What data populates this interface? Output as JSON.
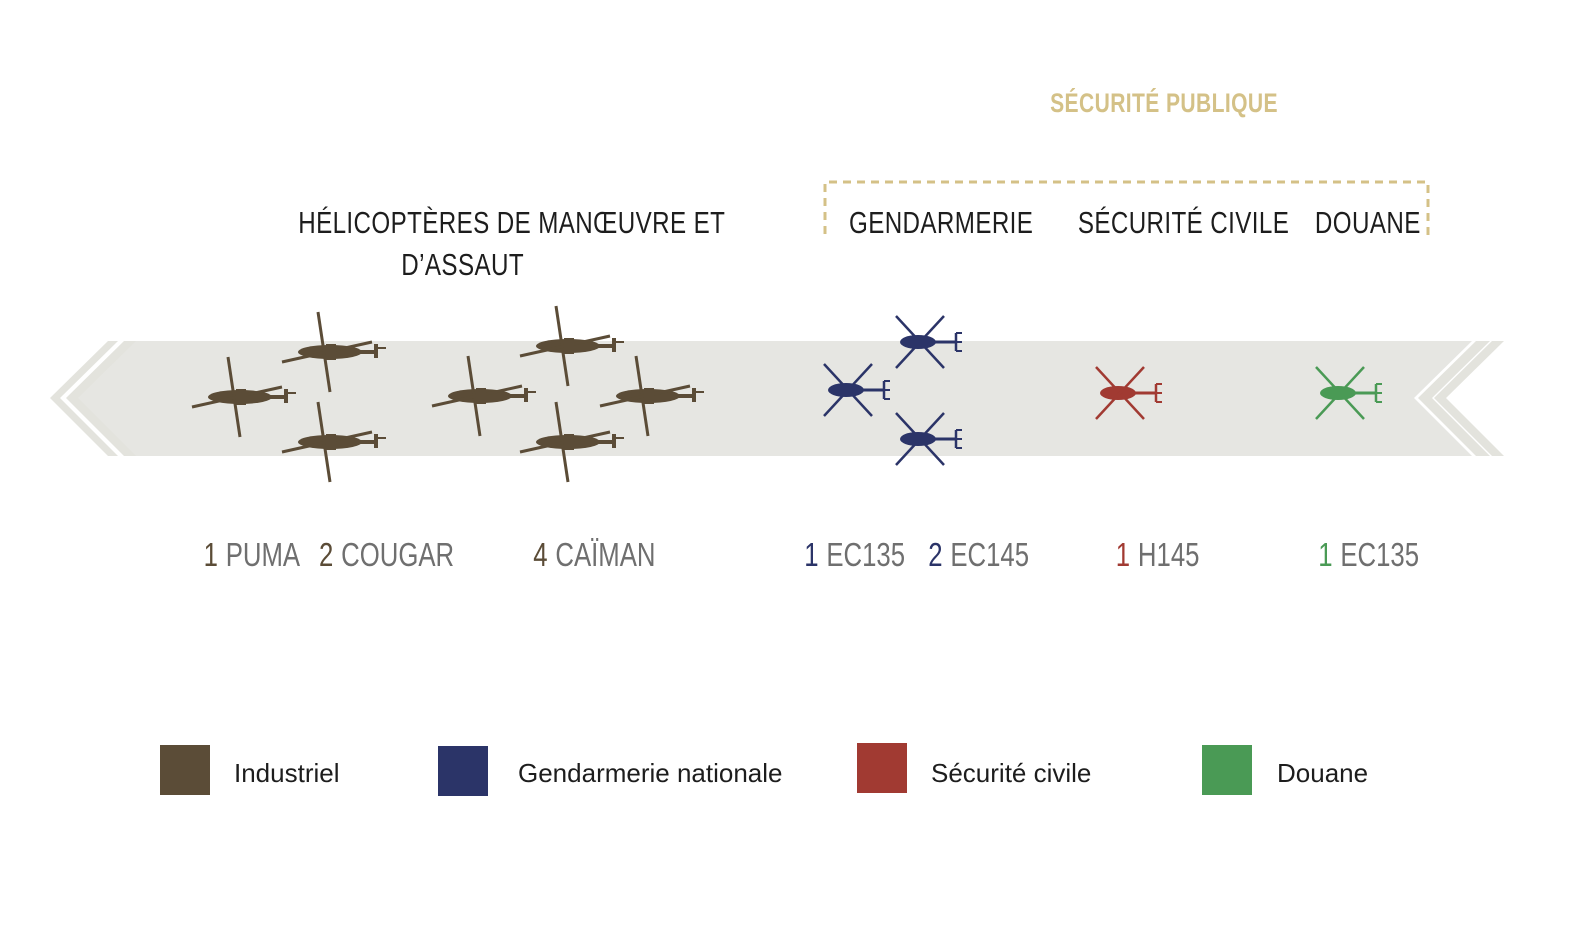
{
  "colors": {
    "industriel": "#5b4c37",
    "gendarmerie": "#2b3468",
    "securite_civile": "#a13a32",
    "douane": "#4a9a55",
    "band": "#e6e6e2",
    "band_chevron": "#e3e3dd",
    "bracket": "#d4c187",
    "heading_text": "#1d1d1d",
    "count_text": "#6f6f6f",
    "publique_text": "#d4c187"
  },
  "titles": {
    "securite_publique": "SÉCURITÉ PUBLIQUE",
    "manoeuvre_line1": "HÉLICOPTÈRES DE MANŒUVRE ET",
    "manoeuvre_line2": "D’ASSAUT",
    "gendarmerie": "GENDARMERIE",
    "securite_civile": "SÉCURITÉ CIVILE",
    "douane": "DOUANE"
  },
  "fleet": [
    {
      "count": "1",
      "model": "PUMA",
      "group": "industriel"
    },
    {
      "count": "2",
      "model": "COUGAR",
      "group": "industriel"
    },
    {
      "count": "4",
      "model": "CAÏMAN",
      "group": "industriel"
    },
    {
      "count": "1",
      "model": "EC135",
      "group": "gendarmerie"
    },
    {
      "count": "2",
      "model": "EC145",
      "group": "gendarmerie"
    },
    {
      "count": "1",
      "model": "H145",
      "group": "securite_civile"
    },
    {
      "count": "1",
      "model": "EC135",
      "group": "douane"
    }
  ],
  "helicopter_icons": [
    {
      "kind": "heavy",
      "group": "industriel"
    },
    {
      "kind": "heavy",
      "group": "industriel"
    },
    {
      "kind": "heavy",
      "group": "industriel"
    },
    {
      "kind": "heavy",
      "group": "industriel"
    },
    {
      "kind": "heavy",
      "group": "industriel"
    },
    {
      "kind": "heavy",
      "group": "industriel"
    },
    {
      "kind": "heavy",
      "group": "industriel"
    },
    {
      "kind": "light",
      "group": "gendarmerie"
    },
    {
      "kind": "light",
      "group": "gendarmerie"
    },
    {
      "kind": "light",
      "group": "gendarmerie"
    },
    {
      "kind": "light",
      "group": "securite_civile"
    },
    {
      "kind": "light",
      "group": "douane"
    }
  ],
  "legend": [
    {
      "label": "Industriel",
      "color": "#5b4c37"
    },
    {
      "label": "Gendarmerie nationale",
      "color": "#2b3468"
    },
    {
      "label": "Sécurité civile",
      "color": "#a13a32"
    },
    {
      "label": "Douane",
      "color": "#4a9a55"
    }
  ]
}
